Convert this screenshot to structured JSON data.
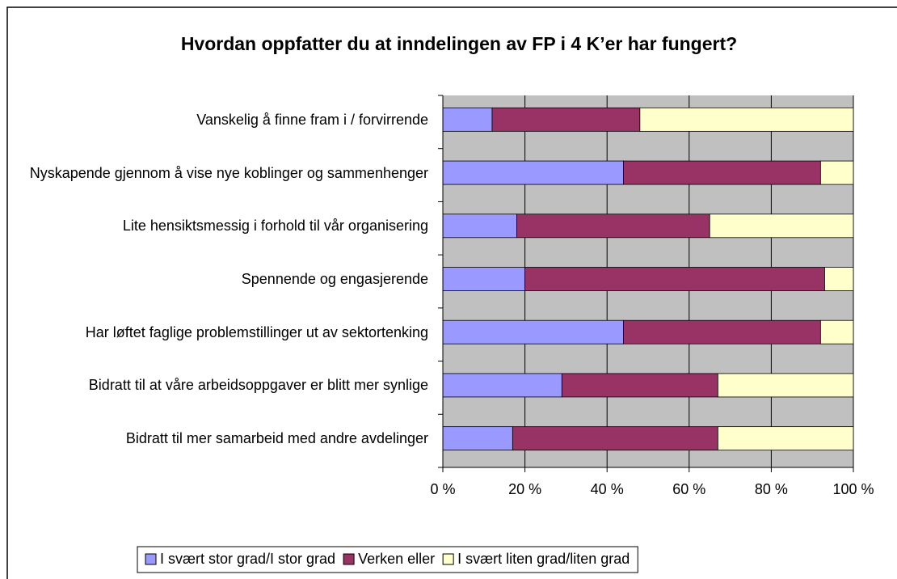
{
  "chart_data": {
    "type": "stacked_bar_horizontal",
    "title": "Hvordan oppfatter du at inndelingen av FP i 4 K’er har fungert?",
    "categories": [
      "Vanskelig å finne fram i / forvirrende",
      "Nyskapende  gjennom å vise nye koblinger og sammenhenger",
      "Lite hensiktsmessig i forhold til vår organisering",
      "Spennende og engasjerende",
      "Har løftet faglige problemstillinger ut av sektortenking",
      "Bidratt til at våre arbeidsoppgaver er blitt mer synlige",
      "Bidratt til mer samarbeid med andre avdelinger"
    ],
    "series": [
      {
        "name": "I svært stor grad/I stor grad",
        "color": "#9999ff",
        "values": [
          12,
          44,
          18,
          20,
          44,
          29,
          17
        ]
      },
      {
        "name": "Verken eller",
        "color": "#993366",
        "values": [
          36,
          48,
          47,
          73,
          48,
          38,
          50
        ]
      },
      {
        "name": "I svært liten grad/liten grad",
        "color": "#ffffcc",
        "values": [
          52,
          8,
          35,
          7,
          8,
          33,
          33
        ]
      }
    ],
    "xlim": [
      0,
      100
    ],
    "xticks": [
      {
        "value": 0,
        "label": "0 %"
      },
      {
        "value": 20,
        "label": "20 %"
      },
      {
        "value": 40,
        "label": "40 %"
      },
      {
        "value": 60,
        "label": "60 %"
      },
      {
        "value": 80,
        "label": "80 %"
      },
      {
        "value": 100,
        "label": "100 %"
      }
    ],
    "grid": true,
    "plot_background": "#c0c0c0",
    "legend": "bottom"
  }
}
